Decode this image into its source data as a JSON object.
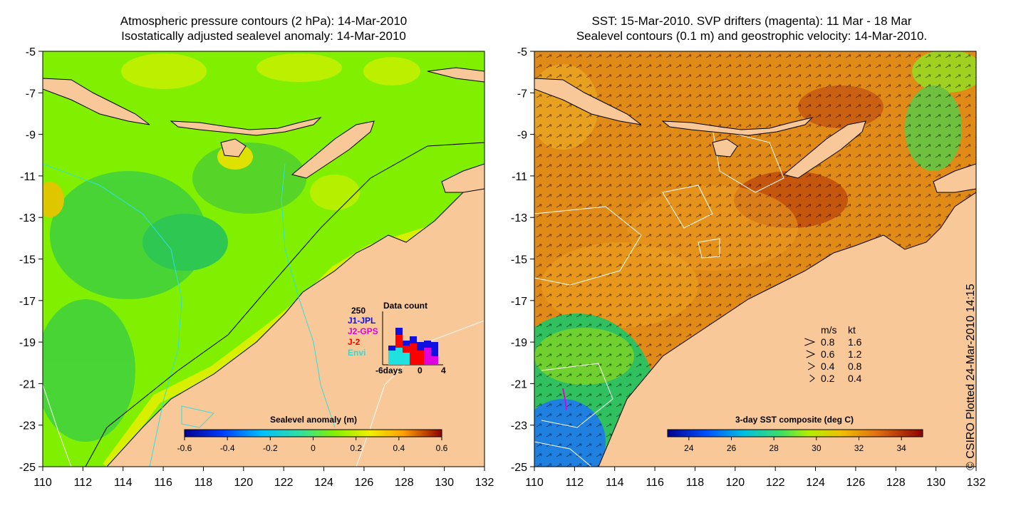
{
  "left_panel": {
    "title_line1": "Atmospheric pressure contours (2 hPa): 14-Mar-2010",
    "title_line2": "Isostatically adjusted sealevel anomaly: 14-Mar-2010",
    "colorbar": {
      "label": "Sealevel anomaly (m)",
      "ticks": [
        "-0.6",
        "-0.4",
        "-0.2",
        "0",
        "0.2",
        "0.4",
        "0.6"
      ],
      "min": -0.6,
      "max": 0.6
    },
    "data_count": {
      "title": "Data count",
      "ymax_label": "250",
      "legend": [
        {
          "label": "J1-JPL",
          "color": "#1010e0"
        },
        {
          "label": "J2-GPS",
          "color": "#e000e0"
        },
        {
          "label": "J-2",
          "color": "#ff0000"
        },
        {
          "label": "Envi",
          "color": "#20e0e0"
        }
      ],
      "x_ticks": [
        "-6days",
        "0",
        "4"
      ]
    }
  },
  "right_panel": {
    "title_line1": "SST: 15-Mar-2010. SVP drifters (magenta): 11 Mar - 18 Mar",
    "title_line2": "Sealevel contours (0.1 m) and geostrophic velocity: 14-Mar-2010.",
    "colorbar": {
      "label": "3-day SST composite (deg C)",
      "ticks": [
        "24",
        "26",
        "28",
        "30",
        "32",
        "34"
      ],
      "min": 23,
      "max": 35
    },
    "velocity_legend": {
      "header_ms": "m/s",
      "header_kt": "kt",
      "rows": [
        {
          "ms": "0.8",
          "kt": "1.6"
        },
        {
          "ms": "0.6",
          "kt": "1.2"
        },
        {
          "ms": "0.4",
          "kt": "0.8"
        },
        {
          "ms": "0.2",
          "kt": "0.4"
        }
      ]
    }
  },
  "axes": {
    "lat_ticks": [
      "-5",
      "-7",
      "-9",
      "-11",
      "-13",
      "-15",
      "-17",
      "-19",
      "-21",
      "-23",
      "-25"
    ],
    "lon_ticks": [
      "110",
      "112",
      "114",
      "116",
      "118",
      "120",
      "122",
      "124",
      "126",
      "128",
      "130",
      "132"
    ]
  },
  "copyright": "© CSIRO Plotted 24-Mar-2010 14:15",
  "colors": {
    "land": "#f9c898",
    "ocean_left": "#80f000",
    "ocean_right": "#e08a18"
  }
}
